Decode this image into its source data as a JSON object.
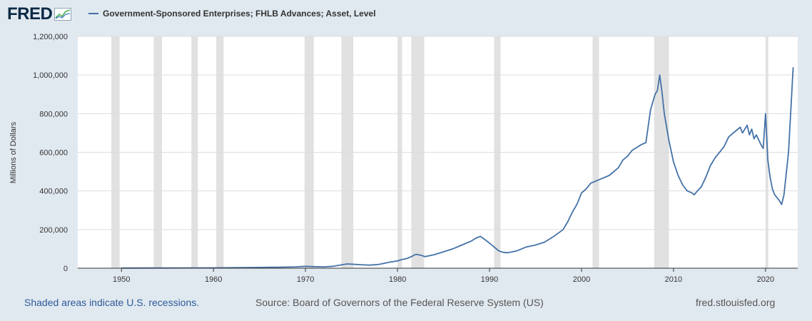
{
  "header": {
    "logo_text": "FRED",
    "legend_label": "Government-Sponsored Enterprises; FHLB Advances; Asset, Level"
  },
  "footer": {
    "left": "Shaded areas indicate U.S. recessions.",
    "source": "Source: Board of Governors of the Federal Reserve System (US)",
    "site": "fred.stlouisfed.org"
  },
  "colors": {
    "background": "#e1e9f0",
    "plot_background": "#ffffff",
    "series": "#4572a7",
    "recession": "#e1e1e1",
    "grid": "#dddddd",
    "logo": "#0b2a45"
  },
  "chart_data": {
    "type": "line",
    "title": "",
    "xlabel": "",
    "ylabel": "Millions of Dollars",
    "xlim": [
      1945.25,
      2023.5
    ],
    "ylim": [
      0,
      1200000
    ],
    "x_ticks": [
      1950,
      1960,
      1970,
      1980,
      1990,
      2000,
      2010,
      2020
    ],
    "y_ticks": [
      0,
      200000,
      400000,
      600000,
      800000,
      1000000,
      1200000
    ],
    "y_tick_labels": [
      "0",
      "200,000",
      "400,000",
      "600,000",
      "800,000",
      "1,000,000",
      "1,200,000"
    ],
    "grid": "horizontal",
    "recessions": [
      [
        1948.9,
        1949.8
      ],
      [
        1953.5,
        1954.4
      ],
      [
        1957.6,
        1958.3
      ],
      [
        1960.3,
        1961.1
      ],
      [
        1969.9,
        1970.9
      ],
      [
        1973.9,
        1975.2
      ],
      [
        1980.0,
        1980.5
      ],
      [
        1981.5,
        1982.9
      ],
      [
        1990.5,
        1991.2
      ],
      [
        2001.2,
        2001.9
      ],
      [
        2007.9,
        2009.5
      ],
      [
        2020.0,
        2020.3
      ]
    ],
    "series": [
      {
        "name": "Government-Sponsored Enterprises; FHLB Advances; Asset, Level",
        "x": [
          1950,
          1953,
          1955,
          1960,
          1963,
          1965,
          1967,
          1969,
          1970,
          1971,
          1972,
          1973,
          1974,
          1974.5,
          1975,
          1976,
          1977,
          1978,
          1979,
          1980,
          1980.5,
          1981,
          1981.5,
          1982,
          1982.5,
          1983,
          1984,
          1985,
          1986,
          1987,
          1988,
          1988.5,
          1989,
          1989.5,
          1990,
          1990.5,
          1991,
          1991.5,
          1992,
          1993,
          1994,
          1995,
          1996,
          1997,
          1998,
          1998.5,
          1999,
          1999.5,
          2000,
          2000.5,
          2001,
          2002,
          2003,
          2004,
          2004.5,
          2005,
          2005.5,
          2006,
          2006.5,
          2007,
          2007.5,
          2007.75,
          2008,
          2008.25,
          2008.5,
          2008.75,
          2009,
          2009.5,
          2010,
          2010.5,
          2011,
          2011.5,
          2012,
          2012.25,
          2012.5,
          2013,
          2013.5,
          2014,
          2014.5,
          2015,
          2015.5,
          2016,
          2016.5,
          2017,
          2017.25,
          2017.5,
          2018,
          2018.25,
          2018.5,
          2018.75,
          2019,
          2019.5,
          2019.75,
          2020,
          2020.25,
          2020.5,
          2020.75,
          2021,
          2021.5,
          2021.75,
          2022,
          2022.5,
          2023
        ],
        "values": [
          800,
          1000,
          1200,
          2000,
          3000,
          4000,
          5000,
          7000,
          10000,
          8000,
          7000,
          10000,
          18000,
          22000,
          21000,
          18000,
          16000,
          20000,
          30000,
          38000,
          45000,
          50000,
          60000,
          72000,
          68000,
          60000,
          70000,
          85000,
          100000,
          120000,
          140000,
          155000,
          165000,
          148000,
          130000,
          110000,
          90000,
          82000,
          80000,
          90000,
          110000,
          120000,
          135000,
          165000,
          200000,
          240000,
          290000,
          330000,
          390000,
          410000,
          440000,
          460000,
          480000,
          520000,
          560000,
          580000,
          610000,
          625000,
          640000,
          650000,
          820000,
          860000,
          900000,
          920000,
          1000000,
          910000,
          800000,
          660000,
          550000,
          480000,
          430000,
          400000,
          390000,
          380000,
          395000,
          420000,
          470000,
          530000,
          570000,
          600000,
          630000,
          680000,
          700000,
          720000,
          730000,
          700000,
          740000,
          690000,
          720000,
          670000,
          690000,
          640000,
          620000,
          800000,
          560000,
          470000,
          410000,
          380000,
          350000,
          330000,
          380000,
          600000,
          1040000
        ]
      }
    ]
  }
}
